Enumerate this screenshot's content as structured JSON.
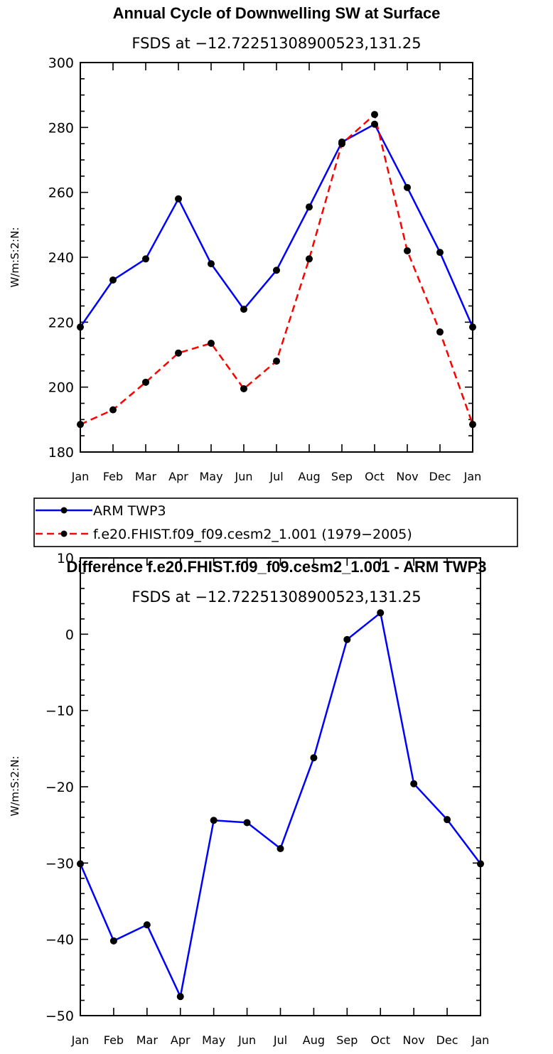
{
  "chart_data": [
    {
      "type": "line",
      "title": "Annual Cycle of Downwelling SW at Surface",
      "subtitle": "FSDS at −12.72251308900523,131.25",
      "ylabel": "W/m:S:2:N:",
      "xlabel": "",
      "ylim": [
        180,
        300
      ],
      "yticks": [
        "180",
        "200",
        "220",
        "240",
        "260",
        "280",
        "300"
      ],
      "categories": [
        "Jan",
        "Feb",
        "Mar",
        "Apr",
        "May",
        "Jun",
        "Jul",
        "Aug",
        "Sep",
        "Oct",
        "Nov",
        "Dec",
        "Jan"
      ],
      "series": [
        {
          "name": "ARM TWP3",
          "color": "#0000ff",
          "dash": "solid",
          "values": [
            218.5,
            233,
            239.5,
            258,
            238,
            224,
            236,
            255.5,
            275.5,
            281,
            261.5,
            241.5,
            218.5
          ]
        },
        {
          "name": "f.e20.FHIST.f09_f09.cesm2_1.001 (1979−2005)",
          "color": "#ff0000",
          "dash": "dashed",
          "values": [
            188.5,
            193,
            201.5,
            210.5,
            213.5,
            199.5,
            208,
            239.5,
            275,
            284,
            242,
            217,
            188.5
          ]
        }
      ]
    },
    {
      "type": "line",
      "title": "Difference f.e20.FHIST.f09_f09.cesm2_1.001 - ARM TWP3",
      "subtitle": "FSDS at −12.72251308900523,131.25",
      "ylabel": "W/m:S:2:N:",
      "xlabel": "",
      "ylim": [
        -50,
        10
      ],
      "yticks": [
        "−50",
        "−40",
        "−30",
        "−20",
        "−10",
        "0",
        "10"
      ],
      "categories": [
        "Jan",
        "Feb",
        "Mar",
        "Apr",
        "May",
        "Jun",
        "Jul",
        "Aug",
        "Sep",
        "Oct",
        "Nov",
        "Dec",
        "Jan"
      ],
      "series": [
        {
          "name": "Difference",
          "color": "#0000ff",
          "dash": "solid",
          "values": [
            -30.1,
            -40.2,
            -38.1,
            -47.5,
            -24.4,
            -24.7,
            -28.1,
            -16.2,
            -0.7,
            2.8,
            -19.6,
            -24.3,
            -30.1
          ]
        }
      ]
    }
  ]
}
